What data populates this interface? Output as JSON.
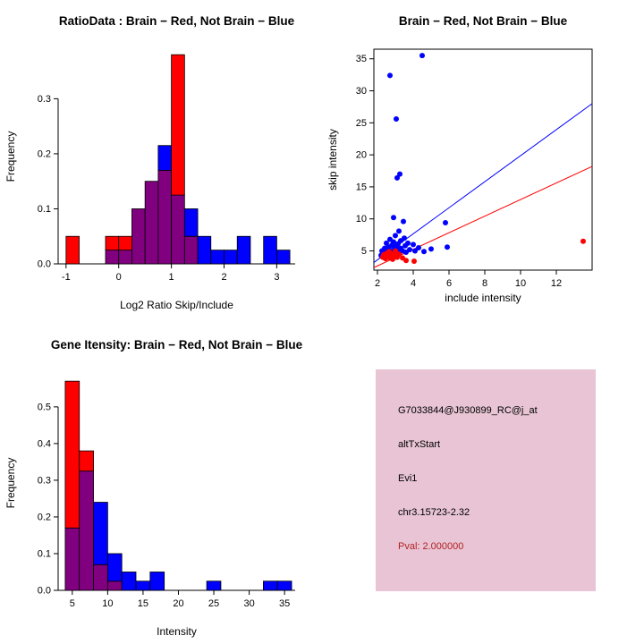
{
  "colors": {
    "red": "#ff0000",
    "blue": "#0000ff",
    "overlap": "#800080",
    "axis": "#000000",
    "background": "#ffffff"
  },
  "legend_semantics": {
    "red": "Brain",
    "blue": "Not Brain"
  },
  "chart_data": [
    {
      "type": "bar",
      "subtype": "overlaid-histogram",
      "title": "RatioData : Brain − Red, Not Brain − Blue",
      "xlabel": "Log2 Ratio Skip/Include",
      "ylabel": "Frequency",
      "xlim": [
        -1.15,
        3.35
      ],
      "ylim": [
        0,
        0.39
      ],
      "x_ticks": [
        -1,
        0,
        1,
        2,
        3
      ],
      "x_tick_labels": [
        "-1",
        "0",
        "1",
        "2",
        "3"
      ],
      "y_ticks": [
        0,
        0.1,
        0.2,
        0.3
      ],
      "y_tick_labels": [
        "0.0",
        "0.1",
        "0.2",
        "0.3"
      ],
      "bin_width": 0.25,
      "bins": [
        {
          "x": -1.0,
          "red": 0.05,
          "blue": 0
        },
        {
          "x": -0.75,
          "red": 0,
          "blue": 0
        },
        {
          "x": -0.5,
          "red": 0,
          "blue": 0
        },
        {
          "x": -0.25,
          "red": 0.05,
          "blue": 0.025
        },
        {
          "x": 0.0,
          "red": 0.05,
          "blue": 0.025
        },
        {
          "x": 0.25,
          "red": 0.1,
          "blue": 0.1
        },
        {
          "x": 0.5,
          "red": 0.15,
          "blue": 0.15
        },
        {
          "x": 0.75,
          "red": 0.17,
          "blue": 0.215
        },
        {
          "x": 1.0,
          "red": 0.38,
          "blue": 0.125
        },
        {
          "x": 1.25,
          "red": 0.05,
          "blue": 0.1
        },
        {
          "x": 1.5,
          "red": 0,
          "blue": 0.05
        },
        {
          "x": 1.75,
          "red": 0,
          "blue": 0.025
        },
        {
          "x": 2.0,
          "red": 0,
          "blue": 0.025
        },
        {
          "x": 2.25,
          "red": 0,
          "blue": 0.05
        },
        {
          "x": 2.5,
          "red": 0,
          "blue": 0
        },
        {
          "x": 2.75,
          "red": 0,
          "blue": 0.05
        },
        {
          "x": 3.0,
          "red": 0,
          "blue": 0.025
        }
      ]
    },
    {
      "type": "scatter",
      "title": "Brain − Red, Not Brain − Blue",
      "xlabel": "include intensity",
      "ylabel": "skip intensity",
      "xlim": [
        1.8,
        14
      ],
      "ylim": [
        2,
        36.5
      ],
      "x_ticks": [
        2,
        4,
        6,
        8,
        10,
        12
      ],
      "x_tick_labels": [
        "2",
        "4",
        "6",
        "8",
        "10",
        "12"
      ],
      "y_ticks": [
        5,
        10,
        15,
        20,
        25,
        30,
        35
      ],
      "y_tick_labels": [
        "5",
        "10",
        "15",
        "20",
        "25",
        "30",
        "35"
      ],
      "series": [
        {
          "name": "not-brain",
          "color": "blue",
          "points": [
            [
              2.2,
              4.3
            ],
            [
              2.25,
              5.0
            ],
            [
              2.3,
              4.6
            ],
            [
              2.4,
              5.4
            ],
            [
              2.4,
              4.2
            ],
            [
              2.5,
              5.0
            ],
            [
              2.5,
              6.2
            ],
            [
              2.55,
              4.5
            ],
            [
              2.6,
              5.6
            ],
            [
              2.65,
              4.8
            ],
            [
              2.7,
              6.8
            ],
            [
              2.7,
              5.1
            ],
            [
              2.75,
              4.4
            ],
            [
              2.8,
              5.9
            ],
            [
              2.85,
              5.0
            ],
            [
              2.9,
              6.4
            ],
            [
              2.9,
              4.6
            ],
            [
              2.95,
              5.3
            ],
            [
              3.0,
              7.4
            ],
            [
              3.0,
              4.9
            ],
            [
              3.05,
              5.7
            ],
            [
              3.1,
              5.0
            ],
            [
              3.15,
              6.1
            ],
            [
              3.2,
              4.7
            ],
            [
              3.2,
              8.1
            ],
            [
              3.3,
              5.4
            ],
            [
              3.3,
              6.6
            ],
            [
              3.4,
              5.0
            ],
            [
              3.45,
              9.6
            ],
            [
              3.5,
              7.0
            ],
            [
              3.55,
              5.8
            ],
            [
              3.6,
              4.8
            ],
            [
              3.7,
              6.2
            ],
            [
              3.8,
              5.2
            ],
            [
              4.0,
              6.0
            ],
            [
              4.1,
              5.0
            ],
            [
              4.3,
              5.5
            ],
            [
              4.6,
              4.9
            ],
            [
              5.0,
              5.3
            ],
            [
              5.9,
              5.6
            ],
            [
              5.8,
              9.4
            ],
            [
              2.9,
              10.2
            ],
            [
              3.1,
              16.4
            ],
            [
              3.25,
              17.0
            ],
            [
              3.05,
              25.6
            ],
            [
              2.7,
              32.4
            ],
            [
              4.5,
              35.5
            ]
          ]
        },
        {
          "name": "brain",
          "color": "red",
          "points": [
            [
              2.3,
              4.0
            ],
            [
              2.35,
              4.4
            ],
            [
              2.45,
              3.8
            ],
            [
              2.5,
              4.6
            ],
            [
              2.6,
              4.1
            ],
            [
              2.65,
              4.9
            ],
            [
              2.7,
              3.9
            ],
            [
              2.8,
              4.5
            ],
            [
              2.85,
              3.7
            ],
            [
              2.95,
              4.3
            ],
            [
              3.0,
              5.0
            ],
            [
              3.1,
              4.0
            ],
            [
              3.2,
              4.5
            ],
            [
              3.4,
              3.9
            ],
            [
              3.6,
              3.5
            ],
            [
              4.05,
              3.4
            ],
            [
              13.5,
              6.5
            ]
          ]
        }
      ],
      "lines": [
        {
          "name": "not-brain-fit",
          "color": "blue",
          "points": [
            [
              1.8,
              3.2
            ],
            [
              14,
              28
            ]
          ]
        },
        {
          "name": "brain-fit",
          "color": "red",
          "points": [
            [
              1.8,
              2.4
            ],
            [
              14,
              18.2
            ]
          ]
        }
      ]
    },
    {
      "type": "bar",
      "subtype": "overlaid-histogram",
      "title": "Gene Itensity: Brain − Red, Not Brain − Blue",
      "xlabel": "Intensity",
      "ylabel": "Frequency",
      "xlim": [
        3,
        36.5
      ],
      "ylim": [
        0,
        0.585
      ],
      "x_ticks": [
        5,
        10,
        15,
        20,
        25,
        30,
        35
      ],
      "x_tick_labels": [
        "5",
        "10",
        "15",
        "20",
        "25",
        "30",
        "35"
      ],
      "y_ticks": [
        0,
        0.1,
        0.2,
        0.3,
        0.4,
        0.5
      ],
      "y_tick_labels": [
        "0.0",
        "0.1",
        "0.2",
        "0.3",
        "0.4",
        "0.5"
      ],
      "bin_width": 2,
      "bins": [
        {
          "x": 4,
          "red": 0.57,
          "blue": 0.17
        },
        {
          "x": 6,
          "red": 0.38,
          "blue": 0.325
        },
        {
          "x": 8,
          "red": 0.07,
          "blue": 0.24
        },
        {
          "x": 10,
          "red": 0.025,
          "blue": 0.1
        },
        {
          "x": 12,
          "red": 0,
          "blue": 0.05
        },
        {
          "x": 14,
          "red": 0,
          "blue": 0.025
        },
        {
          "x": 16,
          "red": 0,
          "blue": 0.05
        },
        {
          "x": 18,
          "red": 0,
          "blue": 0
        },
        {
          "x": 20,
          "red": 0,
          "blue": 0
        },
        {
          "x": 22,
          "red": 0,
          "blue": 0
        },
        {
          "x": 24,
          "red": 0,
          "blue": 0.025
        },
        {
          "x": 26,
          "red": 0,
          "blue": 0
        },
        {
          "x": 28,
          "red": 0,
          "blue": 0
        },
        {
          "x": 30,
          "red": 0,
          "blue": 0
        },
        {
          "x": 32,
          "red": 0,
          "blue": 0.025
        },
        {
          "x": 34,
          "red": 0,
          "blue": 0.025
        }
      ]
    }
  ],
  "info_box": {
    "bg_color": "#e8c4d4",
    "id_label": "G7033844@J930899_RC@j_at",
    "event_type": "altTxStart",
    "gene": "Evi1",
    "locus": "chr3.15723-2.32",
    "pval": "Pval: 2.000000",
    "pval_color": "#b22222"
  }
}
